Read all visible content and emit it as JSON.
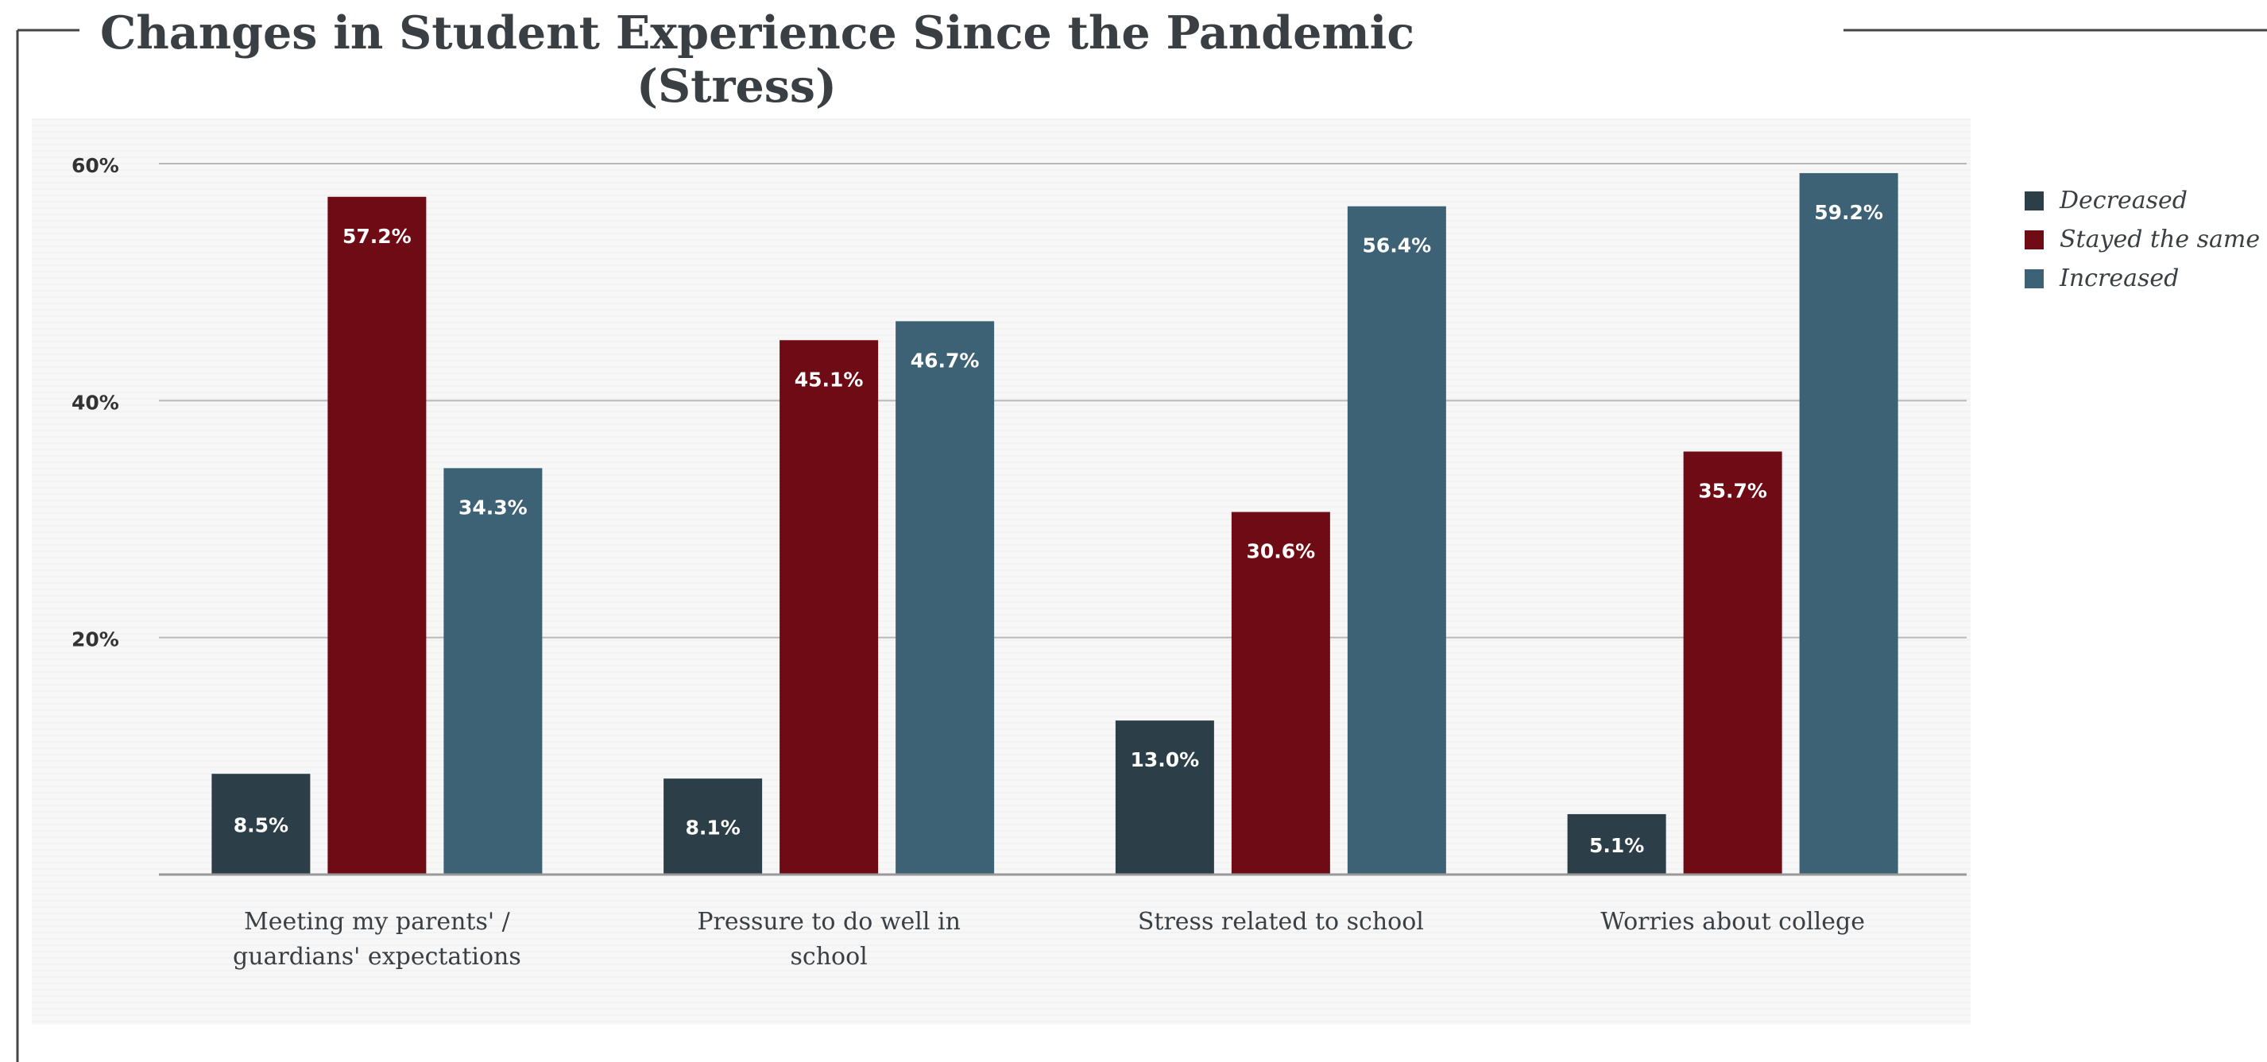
{
  "chart_data": {
    "type": "bar",
    "title": "Changes in Student Experience Since the Pandemic (Stress)",
    "categories": [
      [
        "Meeting my parents' /",
        "guardians' expectations"
      ],
      [
        "Pressure to do well in",
        "school"
      ],
      [
        "Stress related to school"
      ],
      [
        "Worries about college"
      ]
    ],
    "series": [
      {
        "name": "Decreased",
        "color": "#2c3e48",
        "values": [
          8.5,
          8.1,
          13.0,
          5.1
        ],
        "labels": [
          "8.5%",
          "8.1%",
          "13.0%",
          "5.1%"
        ]
      },
      {
        "name": "Stayed the same",
        "color": "#6e0b14",
        "values": [
          57.2,
          45.1,
          30.6,
          35.7
        ],
        "labels": [
          "57.2%",
          "45.1%",
          "30.6%",
          "35.7%"
        ]
      },
      {
        "name": "Increased",
        "color": "#3d6275",
        "values": [
          34.3,
          46.7,
          56.4,
          59.2
        ],
        "labels": [
          "34.3%",
          "46.7%",
          "56.4%",
          "59.2%"
        ]
      }
    ],
    "yticks": [
      {
        "value": 20,
        "label": "20%"
      },
      {
        "value": 40,
        "label": "40%"
      },
      {
        "value": 60,
        "label": "60%"
      }
    ],
    "ylim": [
      0,
      60
    ],
    "xlabel": "",
    "ylabel": "",
    "grid": true,
    "legend_position": "right"
  }
}
